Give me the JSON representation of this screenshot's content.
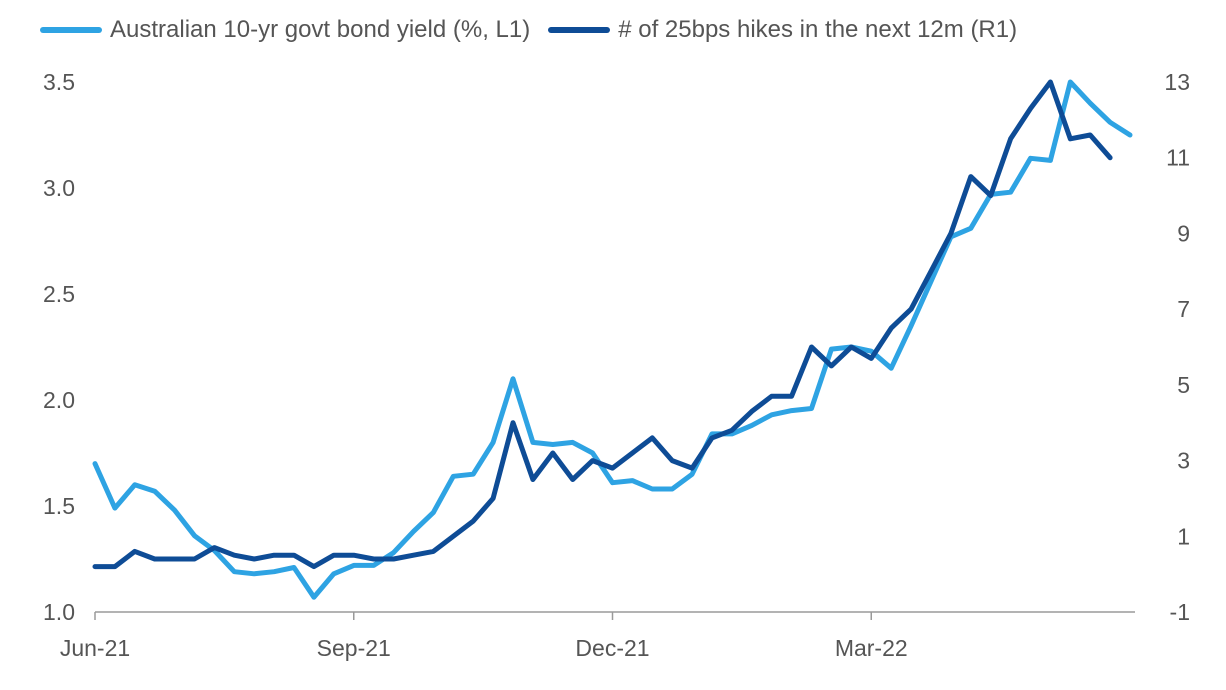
{
  "chart_data": {
    "type": "line",
    "title": "",
    "xlabel": "",
    "ylabel": "",
    "x_tick_labels": [
      "Jun-21",
      "Sep-21",
      "Dec-21",
      "Mar-22"
    ],
    "x_tick_positions": [
      0,
      13,
      26,
      39
    ],
    "y_left": {
      "lim": [
        1.0,
        3.5
      ],
      "ticks": [
        1.0,
        1.5,
        2.0,
        2.5,
        3.0,
        3.5
      ],
      "tick_labels": [
        "1.0",
        "1.5",
        "2.0",
        "2.5",
        "3.0",
        "3.5"
      ]
    },
    "y_right": {
      "lim": [
        -1,
        13
      ],
      "ticks": [
        -1,
        1,
        3,
        5,
        7,
        9,
        11,
        13
      ],
      "tick_labels": [
        "-1",
        "1",
        "3",
        "5",
        "7",
        "9",
        "11",
        "13"
      ]
    },
    "grid": false,
    "legend_position": "top",
    "series": [
      {
        "name": "Australian 10-yr govt bond yield (%, L1)",
        "axis": "left",
        "color": "#2ea3e3",
        "values": [
          1.7,
          1.49,
          1.6,
          1.57,
          1.48,
          1.36,
          1.29,
          1.19,
          1.18,
          1.19,
          1.21,
          1.07,
          1.18,
          1.22,
          1.22,
          1.28,
          1.38,
          1.47,
          1.64,
          1.65,
          1.8,
          2.1,
          1.8,
          1.79,
          1.8,
          1.75,
          1.61,
          1.62,
          1.58,
          1.58,
          1.65,
          1.84,
          1.84,
          1.88,
          1.93,
          1.95,
          1.96,
          2.24,
          2.25,
          2.23,
          2.15,
          2.35,
          2.56,
          2.77,
          2.81,
          2.97,
          2.98,
          3.14,
          3.13,
          3.5,
          3.4,
          3.31,
          3.25
        ]
      },
      {
        "name": "# of 25bps hikes in the next 12m (R1)",
        "axis": "right",
        "color": "#0e4c96",
        "values": [
          0.2,
          0.2,
          0.6,
          0.4,
          0.4,
          0.4,
          0.7,
          0.5,
          0.4,
          0.5,
          0.5,
          0.2,
          0.5,
          0.5,
          0.4,
          0.4,
          0.5,
          0.6,
          1.0,
          1.4,
          2.0,
          4.0,
          2.5,
          3.2,
          2.5,
          3.0,
          2.8,
          3.2,
          3.6,
          3.0,
          2.8,
          3.6,
          3.8,
          4.3,
          4.7,
          4.7,
          6.0,
          5.5,
          6.0,
          5.7,
          6.5,
          7.0,
          8.0,
          9.0,
          10.5,
          10.0,
          11.5,
          12.3,
          13.0,
          11.5,
          11.6,
          11.0
        ]
      }
    ]
  }
}
